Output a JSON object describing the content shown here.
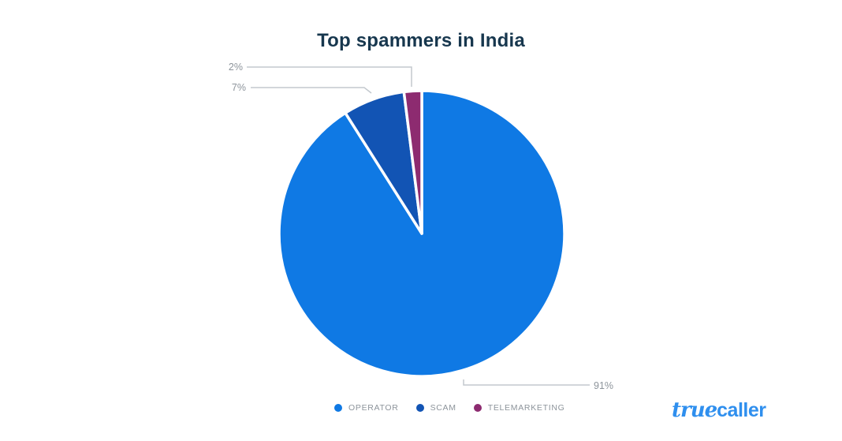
{
  "chart_data": {
    "type": "pie",
    "title": "Top spammers in India",
    "unit": "%",
    "direction": "clockwise",
    "start_angle": "12-o-clock",
    "legend_position": "bottom",
    "slices": [
      {
        "label": "OPERATOR",
        "value": 91,
        "display": "91%",
        "color": "#0f79e4"
      },
      {
        "label": "SCAM",
        "value": 7,
        "display": "7%",
        "color": "#1254b4"
      },
      {
        "label": "TELEMARKETING",
        "value": 2,
        "display": "2%",
        "color": "#8d2b70"
      }
    ]
  },
  "logo": {
    "part1": "true",
    "part2": "caller",
    "color": "#2f8fee"
  },
  "style": {
    "title_color": "#17374e",
    "callout_line_color": "#c3c9ce",
    "callout_text_color": "#8d949b",
    "slice_border_color": "#ffffff",
    "background": "#ffffff"
  }
}
